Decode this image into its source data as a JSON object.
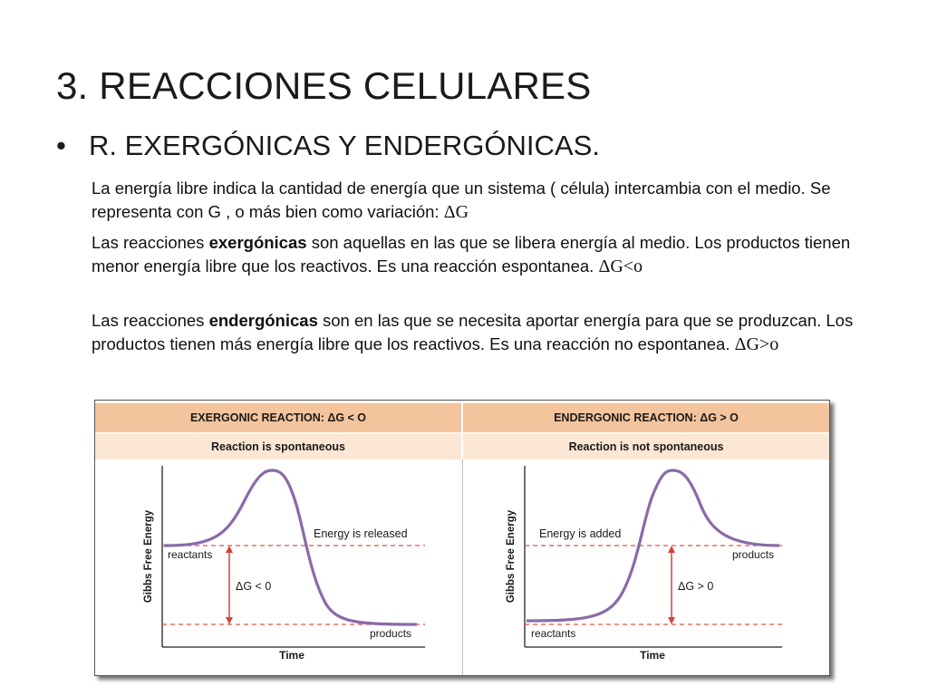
{
  "slide": {
    "title": "3. REACCIONES CELULARES",
    "bullet_marker": "•",
    "bullet_text": "R. EXERGÓNICAS Y ENDERGÓNICAS."
  },
  "paragraphs": {
    "p1_text": "La energía libre indica la cantidad de energía que un sistema ( célula) intercambia con el medio. Se representa con G , o más bien como variación: ",
    "p1_symbol": "ΔG",
    "p2_before": "Las reacciones ",
    "p2_bold": "exergónicas",
    "p2_after": " son aquellas en las que se libera energía al medio. Los productos tienen menor energía libre que los reactivos. Es una reacción espontanea. ",
    "p2_symbol": "ΔG<o",
    "p3_before": "Las reacciones ",
    "p3_bold": "endergónicas",
    "p3_after": " son en  las que se necesita aportar energía para que se produzcan. Los productos tienen más energía libre que los reactivos. Es una reacción no espontanea. ",
    "p3_symbol": "ΔG>o"
  },
  "figure": {
    "left": {
      "header": "EXERGONIC REACTION: ΔG < O",
      "subheader": "Reaction is spontaneous",
      "y_axis_label": "Gibbs Free Energy",
      "x_axis_label": "Time",
      "upper_label": "reactants",
      "lower_label": "products",
      "curve_label": "Energy is released",
      "delta_label": "ΔG < 0"
    },
    "right": {
      "header": "ENDERGONIC REACTION: ΔG > O",
      "subheader": "Reaction is not spontaneous",
      "y_axis_label": "Gibbs Free Energy",
      "x_axis_label": "Time",
      "upper_label": "products",
      "lower_label": "reactants",
      "curve_label": "Energy is added",
      "delta_label": "ΔG > 0"
    },
    "colors": {
      "curve": "#8a6aa8",
      "dashed": "#e0554a",
      "arrow": "#d8413a",
      "header_bg": "#f4c49d",
      "subheader_bg": "#fbe7d4"
    }
  }
}
